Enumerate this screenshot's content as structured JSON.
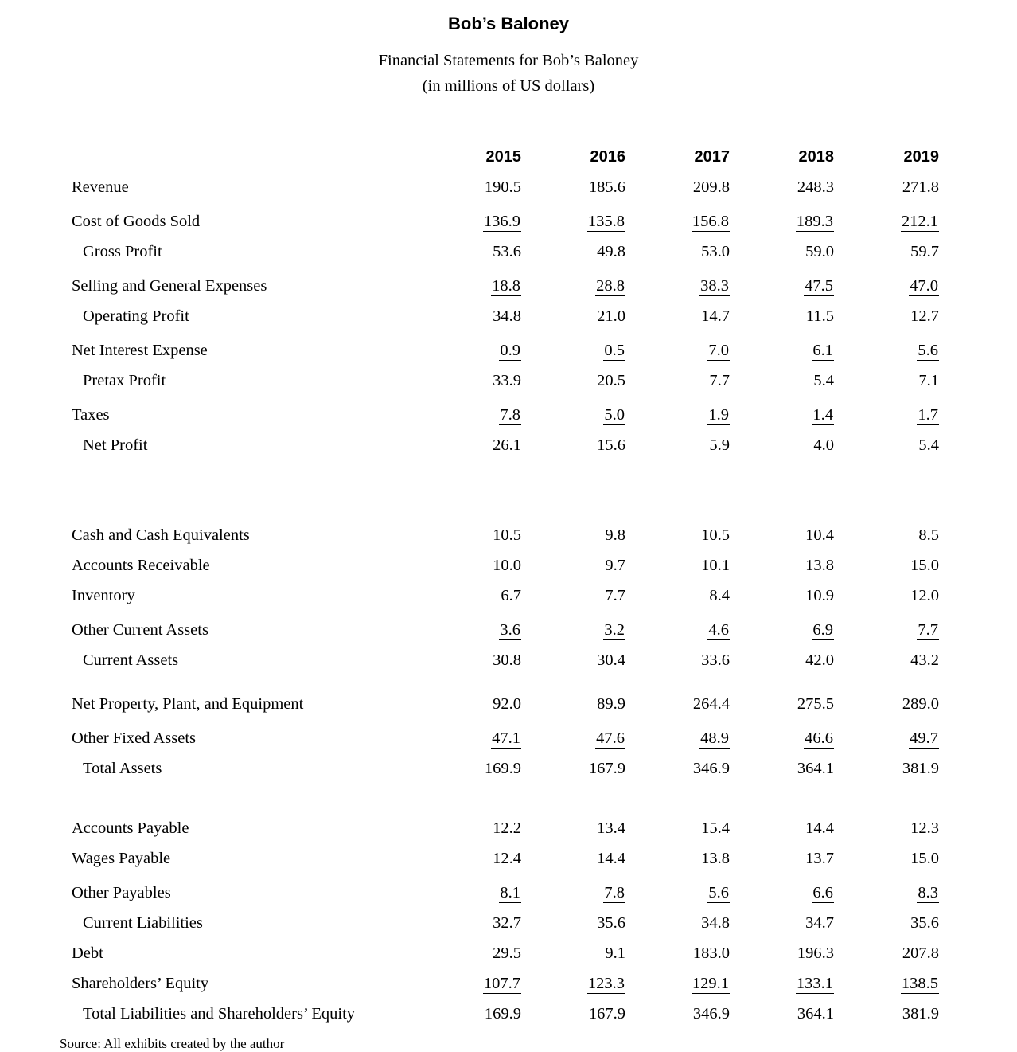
{
  "page": {
    "title": "Bob’s Baloney",
    "subtitle_line1": "Financial Statements for Bob’s Baloney",
    "subtitle_line2": "(in millions of US dollars)",
    "footer": "Source: All exhibits created by the author"
  },
  "table": {
    "years": [
      "2015",
      "2016",
      "2017",
      "2018",
      "2019"
    ],
    "rows": [
      {
        "label": "Revenue",
        "values": [
          "190.5",
          "185.6",
          "209.8",
          "248.3",
          "271.8"
        ],
        "indent": false,
        "underline": false,
        "gap": "none"
      },
      {
        "label": "Cost of Goods Sold",
        "values": [
          "136.9",
          "135.8",
          "156.8",
          "189.3",
          "212.1"
        ],
        "indent": false,
        "underline": true,
        "gap": "small"
      },
      {
        "label": "Gross Profit",
        "values": [
          "53.6",
          "49.8",
          "53.0",
          "59.0",
          "59.7"
        ],
        "indent": true,
        "underline": false,
        "gap": "none"
      },
      {
        "label": "Selling and General Expenses",
        "values": [
          "18.8",
          "28.8",
          "38.3",
          "47.5",
          "47.0"
        ],
        "indent": false,
        "underline": true,
        "gap": "small"
      },
      {
        "label": "Operating Profit",
        "values": [
          "34.8",
          "21.0",
          "14.7",
          "11.5",
          "12.7"
        ],
        "indent": true,
        "underline": false,
        "gap": "none"
      },
      {
        "label": "Net Interest Expense",
        "values": [
          "0.9",
          "0.5",
          "7.0",
          "6.1",
          "5.6"
        ],
        "indent": false,
        "underline": true,
        "gap": "small"
      },
      {
        "label": "Pretax Profit",
        "values": [
          "33.9",
          "20.5",
          "7.7",
          "5.4",
          "7.1"
        ],
        "indent": true,
        "underline": false,
        "gap": "none"
      },
      {
        "label": "Taxes",
        "values": [
          "7.8",
          "5.0",
          "1.9",
          "1.4",
          "1.7"
        ],
        "indent": false,
        "underline": true,
        "gap": "small"
      },
      {
        "label": "Net Profit",
        "values": [
          "26.1",
          "15.6",
          "5.9",
          "4.0",
          "5.4"
        ],
        "indent": true,
        "underline": false,
        "gap": "none"
      },
      {
        "label": "Cash and Cash Equivalents",
        "values": [
          "10.5",
          "9.8",
          "10.5",
          "10.4",
          "8.5"
        ],
        "indent": false,
        "underline": false,
        "gap": "xlarge"
      },
      {
        "label": "Accounts Receivable",
        "values": [
          "10.0",
          "9.7",
          "10.1",
          "13.8",
          "15.0"
        ],
        "indent": false,
        "underline": false,
        "gap": "none"
      },
      {
        "label": "Inventory",
        "values": [
          "6.7",
          "7.7",
          "8.4",
          "10.9",
          "12.0"
        ],
        "indent": false,
        "underline": false,
        "gap": "none"
      },
      {
        "label": "Other Current Assets",
        "values": [
          "3.6",
          "3.2",
          "4.6",
          "6.9",
          "7.7"
        ],
        "indent": false,
        "underline": true,
        "gap": "small"
      },
      {
        "label": "Current Assets",
        "values": [
          "30.8",
          "30.4",
          "33.6",
          "42.0",
          "43.2"
        ],
        "indent": true,
        "underline": false,
        "gap": "none"
      },
      {
        "label": "Net Property, Plant, and Equipment",
        "values": [
          "92.0",
          "89.9",
          "264.4",
          "275.5",
          "289.0"
        ],
        "indent": false,
        "underline": false,
        "gap": "medium"
      },
      {
        "label": "Other Fixed Assets",
        "values": [
          "47.1",
          "47.6",
          "48.9",
          "46.6",
          "49.7"
        ],
        "indent": false,
        "underline": true,
        "gap": "small"
      },
      {
        "label": "Total Assets",
        "values": [
          "169.9",
          "167.9",
          "346.9",
          "364.1",
          "381.9"
        ],
        "indent": true,
        "underline": false,
        "gap": "none"
      },
      {
        "label": "Accounts Payable",
        "values": [
          "12.2",
          "13.4",
          "15.4",
          "14.4",
          "12.3"
        ],
        "indent": false,
        "underline": false,
        "gap": "large"
      },
      {
        "label": "Wages Payable",
        "values": [
          "12.4",
          "14.4",
          "13.8",
          "13.7",
          "15.0"
        ],
        "indent": false,
        "underline": false,
        "gap": "none"
      },
      {
        "label": "Other Payables",
        "values": [
          "8.1",
          "7.8",
          "5.6",
          "6.6",
          "8.3"
        ],
        "indent": false,
        "underline": true,
        "gap": "small"
      },
      {
        "label": "Current Liabilities",
        "values": [
          "32.7",
          "35.6",
          "34.8",
          "34.7",
          "35.6"
        ],
        "indent": true,
        "underline": false,
        "gap": "none"
      },
      {
        "label": "Debt",
        "values": [
          "29.5",
          "9.1",
          "183.0",
          "196.3",
          "207.8"
        ],
        "indent": false,
        "underline": false,
        "gap": "none"
      },
      {
        "label": "Shareholders’ Equity",
        "values": [
          "107.7",
          "123.3",
          "129.1",
          "133.1",
          "138.5"
        ],
        "indent": false,
        "underline": true,
        "gap": "none"
      },
      {
        "label": "Total Liabilities and Shareholders’ Equity",
        "values": [
          "169.9",
          "167.9",
          "346.9",
          "364.1",
          "381.9"
        ],
        "indent": true,
        "underline": false,
        "gap": "none"
      }
    ]
  }
}
